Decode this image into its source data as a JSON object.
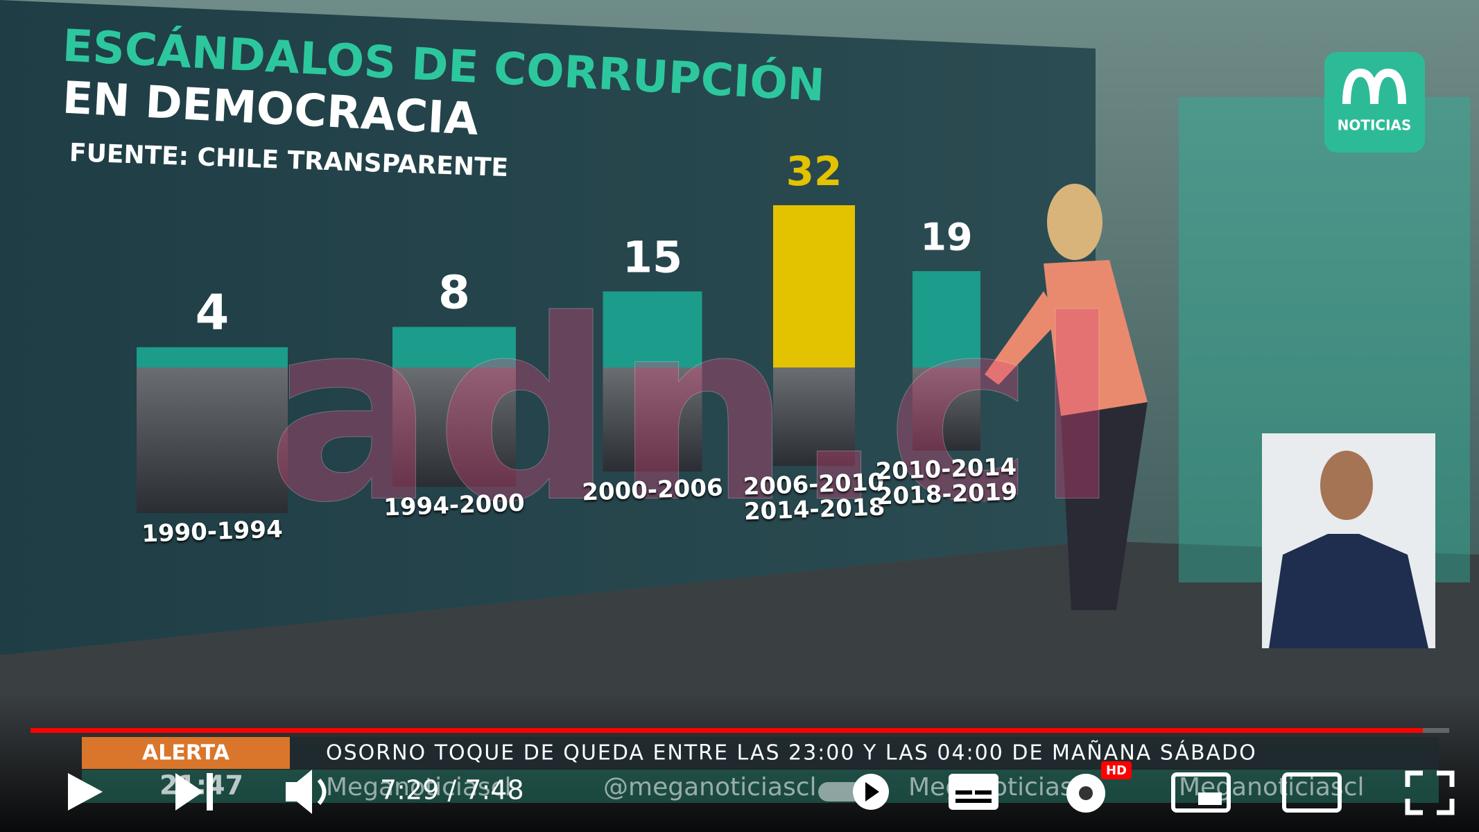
{
  "chart_data": {
    "type": "bar",
    "title": "ESCÁNDALOS DE CORRUPCIÓN",
    "subtitle": "EN DEMOCRACIA",
    "source": "FUENTE: CHILE TRANSPARENTE",
    "categories": [
      "1990-1994",
      "1994-2000",
      "2000-2006",
      "2006-2010\n2014-2018",
      "2010-2014\n2018-2019"
    ],
    "values": [
      4,
      8,
      15,
      32,
      19
    ],
    "colors": [
      "#1c9c8b",
      "#1c9c8b",
      "#1c9c8b",
      "#e3c200",
      "#1c9c8b"
    ]
  },
  "overlay": {
    "logo": "NOTICIAS",
    "watermark": "adn.cl"
  },
  "ticker": {
    "label": "ALERTA",
    "clock": "21:47",
    "text": "OSORNO TOQUE DE QUEDA ENTRE LAS 23:00 Y LAS 04:00 DE MAÑANA SÁBADO",
    "handles": [
      "Meganoticiascl",
      "@meganoticiascl",
      "Meganoticiascl",
      "Meganoticiascl"
    ]
  },
  "player": {
    "time": "7:29 / 7:48",
    "quality_badge": "HD"
  }
}
